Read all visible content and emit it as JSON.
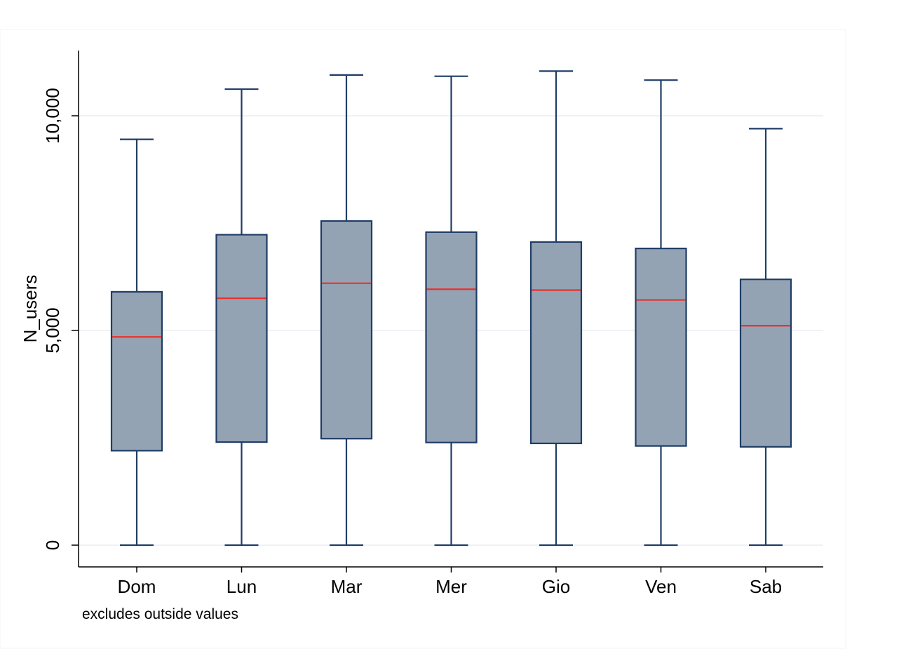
{
  "chart_data": {
    "type": "box",
    "title": "",
    "xlabel": "",
    "ylabel": "N_users",
    "ylim": [
      -500,
      11500
    ],
    "yticks": [
      0,
      5000,
      10000
    ],
    "ytick_labels": [
      "0",
      "5,000",
      "10,000"
    ],
    "grid": true,
    "note": "excludes outside values",
    "colors": {
      "box_fill": "#94a3b4",
      "box_stroke": "#1f3d66",
      "median": "#e8312a",
      "grid": "#eaeef2",
      "axis": "#000000"
    },
    "categories": [
      "Dom",
      "Lun",
      "Mar",
      "Mer",
      "Gio",
      "Ven",
      "Sab"
    ],
    "boxes": [
      {
        "category": "Dom",
        "whisker_low": 0,
        "q1": 2200,
        "median": 4850,
        "q3": 5900,
        "whisker_high": 9450
      },
      {
        "category": "Lun",
        "whisker_low": 0,
        "q1": 2400,
        "median": 5750,
        "q3": 7230,
        "whisker_high": 10620
      },
      {
        "category": "Mar",
        "whisker_low": 0,
        "q1": 2480,
        "median": 6100,
        "q3": 7550,
        "whisker_high": 10950
      },
      {
        "category": "Mer",
        "whisker_low": 0,
        "q1": 2390,
        "median": 5960,
        "q3": 7290,
        "whisker_high": 10920
      },
      {
        "category": "Gio",
        "whisker_low": 0,
        "q1": 2370,
        "median": 5940,
        "q3": 7060,
        "whisker_high": 11040
      },
      {
        "category": "Ven",
        "whisker_low": 0,
        "q1": 2310,
        "median": 5710,
        "q3": 6910,
        "whisker_high": 10830
      },
      {
        "category": "Sab",
        "whisker_low": 0,
        "q1": 2290,
        "median": 5110,
        "q3": 6190,
        "whisker_high": 9700
      }
    ]
  }
}
